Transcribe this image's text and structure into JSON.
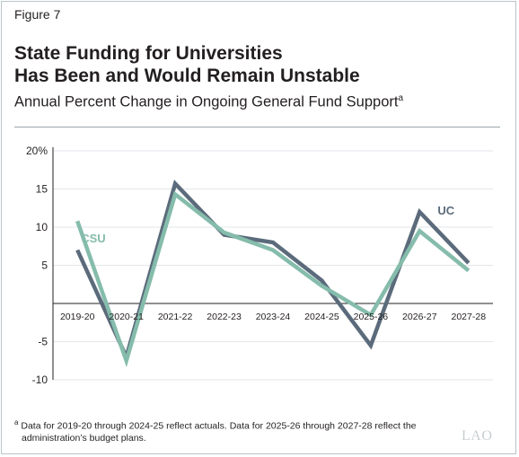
{
  "figure_label": "Figure 7",
  "title_line1": "State Funding for Universities",
  "title_line2": "Has Been and Would Remain Unstable",
  "subtitle": "Annual Percent Change in Ongoing General Fund Support",
  "subtitle_marker": "a",
  "footnote_marker": "a",
  "footnote_line1": "Data for 2019-20 through 2024-25 reflect actuals. Data for 2025-26 through 2027-28 reflect the",
  "footnote_line2": "administration’s budget plans.",
  "logo": "LAO",
  "colors": {
    "uc": "#5b6b7b",
    "csu": "#85bcab",
    "grid": "#e3e6e8",
    "axis": "#231f20"
  },
  "chart_data": {
    "type": "line",
    "categories": [
      "2019-20",
      "2020-21",
      "2021-22",
      "2022-23",
      "2023-24",
      "2024-25",
      "2025-26",
      "2026-27",
      "2027-28"
    ],
    "y_tick_labels": [
      "20%",
      "15",
      "10",
      "5",
      "-5",
      "-10"
    ],
    "ylim": [
      -10,
      20
    ],
    "grid": true,
    "series": [
      {
        "name": "UC",
        "values": [
          7,
          -7,
          15.7,
          9,
          8,
          3,
          -5.5,
          12,
          5.3
        ]
      },
      {
        "name": "CSU",
        "values": [
          10.8,
          -7.5,
          14.3,
          9.3,
          7,
          2.3,
          -1.5,
          9.5,
          4.3
        ]
      }
    ]
  }
}
